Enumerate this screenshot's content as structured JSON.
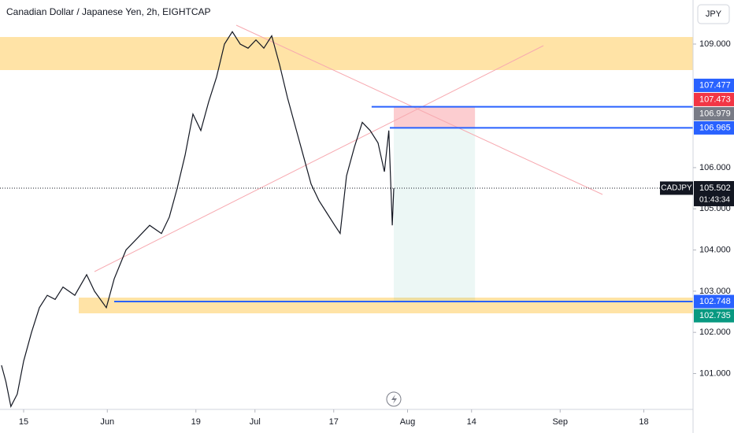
{
  "chart_data": {
    "type": "line",
    "title": "Canadian Dollar / Japanese Yen, 2h, EIGHTCAP",
    "currency": "JPY",
    "color": "#131722",
    "x": [
      130.5,
      131.4,
      132.4,
      133.7,
      135,
      136.6,
      138.2,
      139.8,
      141.4,
      143,
      145.4,
      147.8,
      149.4,
      151.8,
      153.4,
      155.8,
      158.2,
      160.6,
      163,
      164.6,
      166.2,
      167.8,
      169.4,
      171,
      172.6,
      174.2,
      175.8,
      177.4,
      179,
      180.6,
      182.2,
      183.8,
      185.4,
      187,
      188.6,
      190.2,
      191.8,
      193.4,
      195,
      196.6,
      198.2,
      199.3,
      200.6,
      202.2,
      203.8,
      205.4,
      207,
      208.3,
      209.2,
      209.9,
      210.2
    ],
    "values": [
      101.2,
      100.8,
      100.2,
      100.5,
      101.3,
      102.0,
      102.6,
      102.9,
      102.8,
      103.1,
      102.9,
      103.4,
      103.0,
      102.6,
      103.3,
      104.0,
      104.3,
      104.6,
      104.4,
      104.8,
      105.5,
      106.3,
      107.3,
      106.9,
      107.6,
      108.2,
      109.0,
      109.3,
      109.0,
      108.9,
      109.1,
      108.9,
      109.2,
      108.5,
      107.7,
      107.0,
      106.3,
      105.6,
      105.2,
      104.9,
      104.6,
      104.4,
      105.8,
      106.5,
      107.1,
      106.9,
      106.6,
      105.9,
      106.9,
      104.6,
      105.5
    ],
    "xlim": [
      130.2,
      271
    ],
    "xticks": [
      {
        "value": 135,
        "label": "15"
      },
      {
        "value": 152,
        "label": "Jun"
      },
      {
        "value": 170,
        "label": "19"
      },
      {
        "value": 182,
        "label": "Jul"
      },
      {
        "value": 198,
        "label": "17"
      },
      {
        "value": 213,
        "label": "Aug"
      },
      {
        "value": 226,
        "label": "14"
      },
      {
        "value": 244,
        "label": "Sep"
      },
      {
        "value": 261,
        "label": "18"
      }
    ],
    "ylim": [
      100.13,
      110.07
    ],
    "yticks": [
      {
        "value": 101,
        "label": "101.000"
      },
      {
        "value": 102,
        "label": "102.000"
      },
      {
        "value": 103,
        "label": "103.000"
      },
      {
        "value": 104,
        "label": "104.000"
      },
      {
        "value": 105,
        "label": "105.000"
      },
      {
        "value": 106,
        "label": "106.000"
      },
      {
        "value": 109,
        "label": "109.000"
      }
    ],
    "levels": [
      {
        "value": 107.477,
        "start": 205.7,
        "color": "#2962ff"
      },
      {
        "value": 106.965,
        "start": 209.4,
        "color": "#2962ff"
      },
      {
        "value": 102.748,
        "start": 153.4,
        "color": "#2962ff"
      }
    ],
    "position": {
      "stop": 107.473,
      "entry": 106.979,
      "target": 102.735,
      "start": 210.2,
      "end": 226.7,
      "stop_color": "#f23645",
      "entry_color": "#787b86",
      "target_color": "#089981"
    },
    "current": {
      "symbol": "CADJPY",
      "value": 105.502,
      "countdown": "01:43:34"
    }
  }
}
